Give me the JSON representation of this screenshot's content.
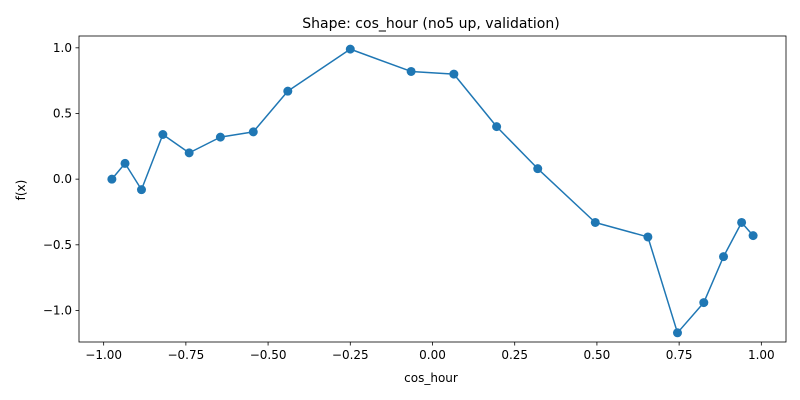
{
  "chart_data": {
    "type": "line",
    "title": "Shape: cos_hour (no5 up, validation)",
    "xlabel": "cos_hour",
    "ylabel": "f(x)",
    "xlim": [
      -1.075,
      1.075
    ],
    "ylim": [
      -1.24,
      1.09
    ],
    "xticks": [
      -1.0,
      -0.75,
      -0.5,
      -0.25,
      0.0,
      0.25,
      0.5,
      0.75,
      1.0
    ],
    "xtick_labels": [
      "−1.00",
      "−0.75",
      "−0.50",
      "−0.25",
      "0.00",
      "0.25",
      "0.50",
      "0.75",
      "1.00"
    ],
    "yticks": [
      -1.0,
      -0.5,
      0.0,
      0.5,
      1.0
    ],
    "ytick_labels": [
      "−1.0",
      "−0.5",
      "0.0",
      "0.5",
      "1.0"
    ],
    "grid": false,
    "color": "#1f77b4",
    "series": [
      {
        "x": [
          -0.975,
          -0.935,
          -0.885,
          -0.82,
          -0.74,
          -0.645,
          -0.545,
          -0.44,
          -0.25,
          -0.065,
          0.065,
          0.195,
          0.32,
          0.495,
          0.655,
          0.745,
          0.825,
          0.885,
          0.94,
          0.975
        ],
        "y": [
          0.0,
          0.12,
          -0.08,
          0.34,
          0.2,
          0.32,
          0.36,
          0.67,
          0.99,
          0.82,
          0.8,
          0.4,
          0.08,
          -0.33,
          -0.44,
          -1.17,
          -0.94,
          -0.59,
          -0.33,
          -0.43
        ]
      }
    ]
  }
}
